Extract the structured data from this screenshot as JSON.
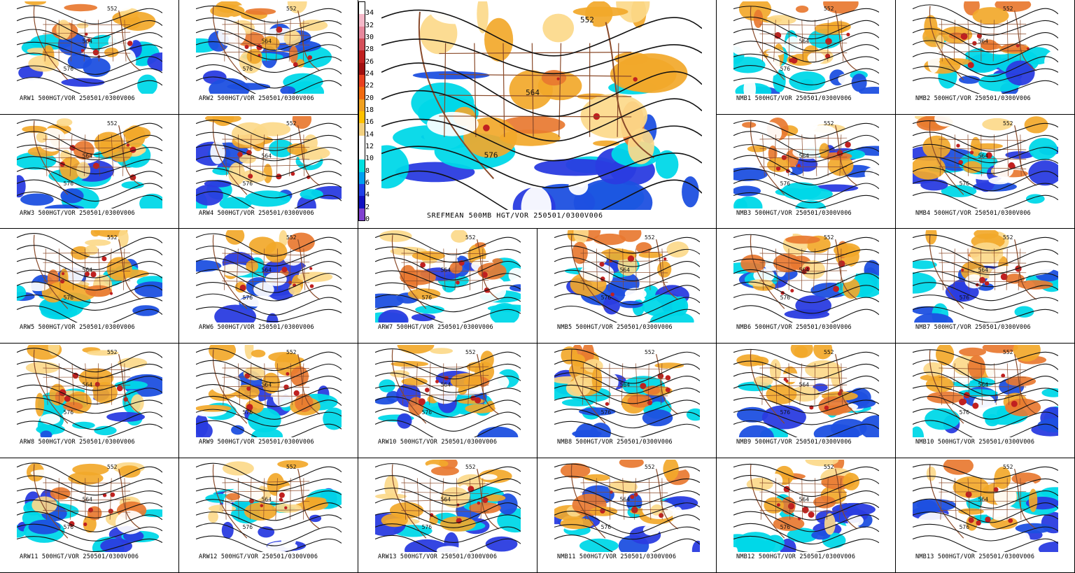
{
  "panels": [
    {
      "id": "ARW1",
      "caption": "ARW1 500HGT/VOR 250501/0300V006",
      "contours": [
        "552",
        "564",
        "576"
      ]
    },
    {
      "id": "ARW2",
      "caption": "ARW2 500HGT/VOR 250501/0300V006",
      "contours": [
        "552",
        "564",
        "576"
      ]
    },
    {
      "id": "NMB1",
      "caption": "NMB1 500HGT/VOR 250501/0300V006",
      "contours": [
        "552",
        "564",
        "576"
      ]
    },
    {
      "id": "NMB2",
      "caption": "NMB2 500HGT/VOR 250501/0300V006",
      "contours": [
        "552",
        "564"
      ]
    },
    {
      "id": "ARW3",
      "caption": "ARW3 500HGT/VOR 250501/0300V006",
      "contours": [
        "552",
        "564",
        "576"
      ]
    },
    {
      "id": "ARW4",
      "caption": "ARW4 500HGT/VOR 250501/0300V006",
      "contours": [
        "552",
        "564",
        "576"
      ]
    },
    {
      "id": "NMB3",
      "caption": "NMB3 500HGT/VOR 250501/0300V006",
      "contours": [
        "552",
        "564",
        "576"
      ]
    },
    {
      "id": "NMB4",
      "caption": "NMB4 500HGT/VOR 250501/0300V006",
      "contours": [
        "552",
        "564",
        "576"
      ]
    },
    {
      "id": "ARW5",
      "caption": "ARW5 500HGT/VOR 250501/0300V006",
      "contours": [
        "552",
        "564",
        "576"
      ]
    },
    {
      "id": "ARW6",
      "caption": "ARW6 500HGT/VOR 250501/0300V006",
      "contours": [
        "552",
        "564",
        "576"
      ]
    },
    {
      "id": "ARW7",
      "caption": "ARW7 500HGT/VOR 250501/0300V006",
      "contours": [
        "552",
        "564",
        "576"
      ]
    },
    {
      "id": "NMB5",
      "caption": "NMB5 500HGT/VOR 250501/0300V006",
      "contours": [
        "552",
        "564",
        "576"
      ]
    },
    {
      "id": "NMB6",
      "caption": "NMB6 500HGT/VOR 250501/0300V006",
      "contours": [
        "552",
        "564",
        "576"
      ]
    },
    {
      "id": "NMB7",
      "caption": "NMB7 500HGT/VOR 250501/0300V006",
      "contours": [
        "552",
        "564",
        "576"
      ]
    },
    {
      "id": "ARW8",
      "caption": "ARW8 500HGT/VOR 250501/0300V006",
      "contours": [
        "552",
        "564",
        "576"
      ]
    },
    {
      "id": "ARW9",
      "caption": "ARW9 500HGT/VOR 250501/0300V006",
      "contours": [
        "552",
        "564",
        "576"
      ]
    },
    {
      "id": "ARW10",
      "caption": "ARW10 500HGT/VOR 250501/0300V006",
      "contours": [
        "552",
        "564",
        "576"
      ]
    },
    {
      "id": "NMB8",
      "caption": "NMB8 500HGT/VOR 250501/0300V006",
      "contours": [
        "552",
        "564",
        "576"
      ]
    },
    {
      "id": "NMB9",
      "caption": "NMB9 500HGT/VOR 250501/0300V006",
      "contours": [
        "552",
        "564",
        "576"
      ]
    },
    {
      "id": "NMB10",
      "caption": "NMB10 500HGT/VOR 250501/0300V006",
      "contours": [
        "552",
        "564",
        "576"
      ]
    },
    {
      "id": "ARW11",
      "caption": "ARW11 500HGT/VOR 250501/0300V006",
      "contours": [
        "552",
        "564",
        "576"
      ]
    },
    {
      "id": "ARW12",
      "caption": "ARW12 500HGT/VOR 250501/0300V006",
      "contours": [
        "552",
        "564",
        "576"
      ]
    },
    {
      "id": "ARW13",
      "caption": "ARW13 500HGT/VOR 250501/0300V006",
      "contours": [
        "552",
        "564",
        "576"
      ]
    },
    {
      "id": "NMB11",
      "caption": "NMB11 500HGT/VOR 250501/0300V006",
      "contours": [
        "552",
        "564",
        "576"
      ]
    },
    {
      "id": "NMB12",
      "caption": "NMB12 500HGT/VOR 250501/0300V006",
      "contours": [
        "552",
        "564",
        "576"
      ]
    },
    {
      "id": "NMB13",
      "caption": "NMB13 500HGT/VOR 250501/0300V006",
      "contours": [
        "552",
        "564",
        "576"
      ]
    }
  ],
  "mean_panel": {
    "caption": "SREFMEAN 500MB HGT/VOR 250501/0300V006",
    "contours": [
      "552",
      "564",
      "576"
    ],
    "colorbar": {
      "labels": [
        "34",
        "32",
        "30",
        "28",
        "26",
        "24",
        "22",
        "20",
        "18",
        "16",
        "14",
        "12",
        "10",
        "8",
        "6",
        "4",
        "2",
        "0"
      ],
      "colors": [
        "#ffffff",
        "#f4b8c8",
        "#e7889c",
        "#d4505a",
        "#c02020",
        "#a01010",
        "#e84020",
        "#f06a10",
        "#f0a020",
        "#ffc000",
        "#f2d080",
        "#ffffff",
        "#ffffff",
        "#00e0e0",
        "#00a0f0",
        "#2040e8",
        "#1010c0",
        "#8040d0"
      ]
    },
    "colors": {
      "land_warm": "#f2a82a",
      "land_light": "#fcd98a",
      "cold": "#00d8e8",
      "blue": "#1e50e0",
      "ocean": "#2a3ce0",
      "border": "#8a4a2a"
    }
  }
}
